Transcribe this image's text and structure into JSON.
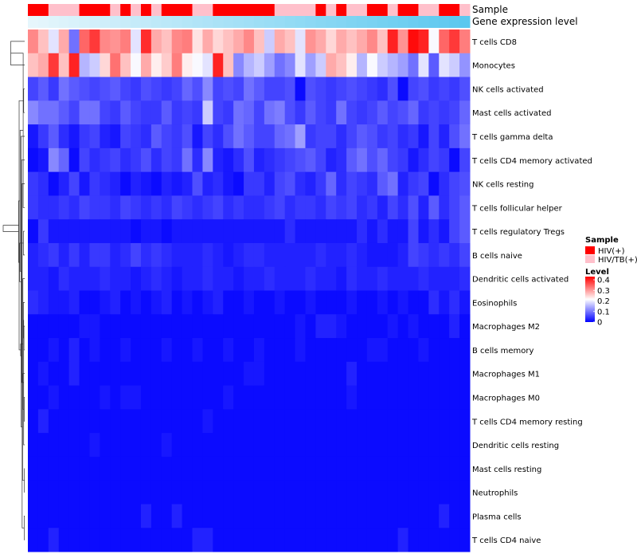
{
  "chart_data": {
    "type": "heatmap",
    "annotation_tracks": [
      "Sample",
      "Gene expression level"
    ],
    "rows": [
      "T cells CD8",
      "Monocytes",
      "NK cells activated",
      "Mast cells activated",
      "T cells gamma delta",
      "T cells CD4 memory activated",
      "NK cells resting",
      "T cells follicular helper",
      "T cells regulatory  Tregs",
      "B cells naive",
      "Dendritic cells activated",
      "Eosinophils",
      "Macrophages M2",
      "B cells memory",
      "Macrophages M1",
      "Macrophages M0",
      "T cells CD4 memory resting",
      "Dendritic cells resting",
      "Mast cells resting",
      "Neutrophils",
      "Plasma cells",
      "T cells CD4 naive"
    ],
    "n_samples": 43,
    "sample_groups": [
      "HIV(+)",
      "HIV(+)",
      "HIV/TB(+)",
      "HIV/TB(+)",
      "HIV/TB(+)",
      "HIV(+)",
      "HIV(+)",
      "HIV(+)",
      "HIV/TB(+)",
      "HIV(+)",
      "HIV/TB(+)",
      "HIV(+)",
      "HIV/TB(+)",
      "HIV(+)",
      "HIV(+)",
      "HIV(+)",
      "HIV/TB(+)",
      "HIV/TB(+)",
      "HIV(+)",
      "HIV(+)",
      "HIV(+)",
      "HIV(+)",
      "HIV(+)",
      "HIV(+)",
      "HIV/TB(+)",
      "HIV/TB(+)",
      "HIV/TB(+)",
      "HIV/TB(+)",
      "HIV(+)",
      "HIV/TB(+)",
      "HIV(+)",
      "HIV/TB(+)",
      "HIV/TB(+)",
      "HIV(+)",
      "HIV(+)",
      "HIV/TB(+)",
      "HIV(+)",
      "HIV(+)",
      "HIV/TB(+)",
      "HIV/TB(+)",
      "HIV(+)",
      "HIV(+)",
      "HIV/TB(+)"
    ],
    "expression_gradient": [
      "#e6f6fc",
      "#5bc8ef"
    ],
    "values": [
      [
        0.33,
        0.28,
        0.2,
        0.3,
        0.1,
        0.36,
        0.4,
        0.33,
        0.32,
        0.34,
        0.2,
        0.41,
        0.3,
        0.28,
        0.33,
        0.34,
        0.25,
        0.3,
        0.26,
        0.28,
        0.3,
        0.33,
        0.28,
        0.18,
        0.3,
        0.28,
        0.2,
        0.32,
        0.3,
        0.26,
        0.3,
        0.28,
        0.3,
        0.33,
        0.28,
        0.42,
        0.32,
        0.44,
        0.42,
        0.22,
        0.36,
        0.4,
        0.34
      ],
      [
        0.28,
        0.3,
        0.4,
        0.28,
        0.42,
        0.16,
        0.18,
        0.26,
        0.35,
        0.28,
        0.22,
        0.3,
        0.24,
        0.27,
        0.34,
        0.24,
        0.22,
        0.2,
        0.42,
        0.28,
        0.12,
        0.16,
        0.18,
        0.14,
        0.1,
        0.12,
        0.2,
        0.14,
        0.18,
        0.3,
        0.28,
        0.24,
        0.16,
        0.22,
        0.18,
        0.16,
        0.14,
        0.1,
        0.2,
        0.08,
        0.2,
        0.18,
        0.13
      ],
      [
        0.06,
        0.08,
        0.05,
        0.1,
        0.08,
        0.07,
        0.06,
        0.07,
        0.08,
        0.06,
        0.05,
        0.07,
        0.06,
        0.05,
        0.06,
        0.09,
        0.07,
        0.12,
        0.06,
        0.07,
        0.06,
        0.1,
        0.08,
        0.06,
        0.06,
        0.07,
        0.01,
        0.07,
        0.06,
        0.05,
        0.06,
        0.07,
        0.06,
        0.05,
        0.04,
        0.07,
        0.01,
        0.06,
        0.07,
        0.05,
        0.06,
        0.05,
        0.07
      ],
      [
        0.12,
        0.1,
        0.1,
        0.08,
        0.06,
        0.1,
        0.1,
        0.06,
        0.05,
        0.08,
        0.06,
        0.05,
        0.05,
        0.08,
        0.05,
        0.06,
        0.05,
        0.18,
        0.06,
        0.05,
        0.1,
        0.09,
        0.06,
        0.1,
        0.11,
        0.07,
        0.05,
        0.08,
        0.06,
        0.05,
        0.1,
        0.06,
        0.05,
        0.06,
        0.08,
        0.06,
        0.07,
        0.09,
        0.05,
        0.06,
        0.05,
        0.06,
        0.09
      ],
      [
        0.02,
        0.05,
        0.08,
        0.04,
        0.02,
        0.05,
        0.06,
        0.03,
        0.02,
        0.06,
        0.05,
        0.04,
        0.08,
        0.06,
        0.05,
        0.07,
        0.02,
        0.06,
        0.04,
        0.07,
        0.1,
        0.08,
        0.06,
        0.06,
        0.09,
        0.1,
        0.14,
        0.05,
        0.06,
        0.06,
        0.04,
        0.06,
        0.08,
        0.07,
        0.05,
        0.06,
        0.04,
        0.05,
        0.02,
        0.06,
        0.03,
        0.07,
        0.1
      ],
      [
        0.01,
        0.02,
        0.12,
        0.09,
        0.01,
        0.06,
        0.04,
        0.05,
        0.06,
        0.04,
        0.05,
        0.07,
        0.04,
        0.06,
        0.05,
        0.1,
        0.04,
        0.12,
        0.03,
        0.02,
        0.04,
        0.07,
        0.03,
        0.04,
        0.05,
        0.06,
        0.07,
        0.08,
        0.06,
        0.03,
        0.04,
        0.08,
        0.1,
        0.07,
        0.09,
        0.06,
        0.05,
        0.02,
        0.04,
        0.06,
        0.05,
        0.01,
        0.06
      ],
      [
        0.05,
        0.04,
        0.01,
        0.03,
        0.06,
        0.02,
        0.05,
        0.04,
        0.03,
        0.01,
        0.03,
        0.02,
        0.01,
        0.03,
        0.02,
        0.03,
        0.07,
        0.03,
        0.04,
        0.02,
        0.01,
        0.05,
        0.05,
        0.03,
        0.06,
        0.07,
        0.04,
        0.03,
        0.05,
        0.09,
        0.04,
        0.06,
        0.05,
        0.04,
        0.08,
        0.1,
        0.03,
        0.05,
        0.06,
        0.01,
        0.04,
        0.06,
        0.07
      ],
      [
        0.05,
        0.04,
        0.04,
        0.05,
        0.04,
        0.06,
        0.05,
        0.05,
        0.04,
        0.06,
        0.05,
        0.04,
        0.05,
        0.04,
        0.06,
        0.05,
        0.04,
        0.05,
        0.06,
        0.04,
        0.05,
        0.04,
        0.04,
        0.05,
        0.06,
        0.04,
        0.05,
        0.05,
        0.04,
        0.06,
        0.05,
        0.06,
        0.04,
        0.05,
        0.03,
        0.06,
        0.04,
        0.07,
        0.03,
        0.08,
        0.04,
        0.06,
        0.08
      ],
      [
        0.01,
        0.05,
        0.02,
        0.02,
        0.02,
        0.02,
        0.02,
        0.02,
        0.02,
        0.02,
        0.01,
        0.02,
        0.02,
        0.01,
        0.02,
        0.02,
        0.02,
        0.02,
        0.02,
        0.02,
        0.02,
        0.02,
        0.02,
        0.02,
        0.02,
        0.04,
        0.02,
        0.02,
        0.02,
        0.02,
        0.02,
        0.02,
        0.04,
        0.02,
        0.04,
        0.02,
        0.02,
        0.06,
        0.02,
        0.04,
        0.02,
        0.06,
        0.08
      ],
      [
        0.03,
        0.04,
        0.05,
        0.03,
        0.05,
        0.03,
        0.05,
        0.05,
        0.03,
        0.04,
        0.06,
        0.04,
        0.05,
        0.04,
        0.03,
        0.03,
        0.03,
        0.04,
        0.03,
        0.02,
        0.03,
        0.04,
        0.04,
        0.03,
        0.03,
        0.03,
        0.03,
        0.03,
        0.04,
        0.03,
        0.03,
        0.04,
        0.03,
        0.02,
        0.02,
        0.02,
        0.03,
        0.06,
        0.05,
        0.04,
        0.05,
        0.04,
        0.06
      ],
      [
        0.03,
        0.03,
        0.02,
        0.04,
        0.03,
        0.03,
        0.03,
        0.04,
        0.03,
        0.03,
        0.02,
        0.03,
        0.04,
        0.03,
        0.02,
        0.03,
        0.03,
        0.04,
        0.03,
        0.03,
        0.02,
        0.03,
        0.03,
        0.04,
        0.03,
        0.03,
        0.03,
        0.04,
        0.03,
        0.03,
        0.02,
        0.04,
        0.03,
        0.03,
        0.04,
        0.03,
        0.03,
        0.03,
        0.04,
        0.03,
        0.03,
        0.03,
        0.04
      ],
      [
        0.04,
        0.03,
        0.02,
        0.02,
        0.03,
        0.01,
        0.01,
        0.02,
        0.03,
        0.01,
        0.02,
        0.01,
        0.02,
        0.03,
        0.01,
        0.02,
        0.01,
        0.02,
        0.03,
        0.01,
        0.01,
        0.02,
        0.01,
        0.01,
        0.02,
        0.01,
        0.01,
        0.02,
        0.01,
        0.01,
        0.01,
        0.02,
        0.01,
        0.01,
        0.02,
        0.01,
        0.02,
        0.01,
        0.01,
        0.04,
        0.02,
        0.04,
        0.02
      ],
      [
        0.01,
        0.01,
        0.01,
        0.01,
        0.01,
        0.02,
        0.02,
        0.01,
        0.01,
        0.01,
        0.01,
        0.01,
        0.01,
        0.01,
        0.01,
        0.01,
        0.01,
        0.01,
        0.01,
        0.01,
        0.01,
        0.01,
        0.01,
        0.01,
        0.01,
        0.01,
        0.02,
        0.01,
        0.03,
        0.03,
        0.02,
        0.01,
        0.01,
        0.01,
        0.01,
        0.02,
        0.01,
        0.02,
        0.01,
        0.01,
        0.01,
        0.03,
        0.01
      ],
      [
        0.01,
        0.01,
        0.02,
        0.01,
        0.03,
        0.01,
        0.02,
        0.01,
        0.01,
        0.02,
        0.01,
        0.01,
        0.01,
        0.02,
        0.01,
        0.01,
        0.02,
        0.01,
        0.01,
        0.02,
        0.01,
        0.01,
        0.02,
        0.01,
        0.01,
        0.01,
        0.02,
        0.01,
        0.01,
        0.01,
        0.01,
        0.01,
        0.01,
        0.02,
        0.02,
        0.01,
        0.01,
        0.01,
        0.02,
        0.01,
        0.01,
        0.01,
        0.01
      ],
      [
        0.01,
        0.02,
        0.01,
        0.01,
        0.03,
        0.01,
        0.01,
        0.01,
        0.01,
        0.01,
        0.01,
        0.01,
        0.01,
        0.01,
        0.01,
        0.01,
        0.01,
        0.01,
        0.01,
        0.01,
        0.01,
        0.02,
        0.02,
        0.01,
        0.01,
        0.01,
        0.01,
        0.01,
        0.01,
        0.01,
        0.01,
        0.03,
        0.01,
        0.01,
        0.01,
        0.01,
        0.01,
        0.01,
        0.01,
        0.01,
        0.01,
        0.01,
        0.01
      ],
      [
        0.01,
        0.01,
        0.02,
        0.01,
        0.01,
        0.01,
        0.01,
        0.02,
        0.01,
        0.02,
        0.02,
        0.01,
        0.01,
        0.01,
        0.01,
        0.01,
        0.01,
        0.01,
        0.01,
        0.02,
        0.01,
        0.01,
        0.01,
        0.01,
        0.01,
        0.01,
        0.01,
        0.01,
        0.01,
        0.01,
        0.01,
        0.02,
        0.01,
        0.01,
        0.01,
        0.01,
        0.01,
        0.01,
        0.01,
        0.01,
        0.01,
        0.01,
        0.01
      ],
      [
        0.01,
        0.03,
        0.01,
        0.01,
        0.01,
        0.01,
        0.01,
        0.01,
        0.01,
        0.01,
        0.01,
        0.01,
        0.01,
        0.01,
        0.01,
        0.01,
        0.01,
        0.02,
        0.01,
        0.01,
        0.01,
        0.01,
        0.01,
        0.01,
        0.01,
        0.01,
        0.01,
        0.01,
        0.01,
        0.01,
        0.01,
        0.01,
        0.01,
        0.01,
        0.01,
        0.01,
        0.01,
        0.01,
        0.01,
        0.01,
        0.01,
        0.01,
        0.01
      ],
      [
        0.01,
        0.01,
        0.01,
        0.01,
        0.01,
        0.01,
        0.02,
        0.01,
        0.01,
        0.01,
        0.01,
        0.01,
        0.01,
        0.02,
        0.01,
        0.01,
        0.01,
        0.01,
        0.01,
        0.01,
        0.01,
        0.01,
        0.01,
        0.01,
        0.01,
        0.01,
        0.01,
        0.01,
        0.01,
        0.01,
        0.01,
        0.01,
        0.01,
        0.01,
        0.01,
        0.01,
        0.01,
        0.01,
        0.01,
        0.01,
        0.01,
        0.01,
        0.01
      ],
      [
        0.01,
        0.01,
        0.01,
        0.01,
        0.01,
        0.01,
        0.01,
        0.01,
        0.01,
        0.01,
        0.01,
        0.01,
        0.01,
        0.01,
        0.01,
        0.01,
        0.01,
        0.01,
        0.01,
        0.01,
        0.01,
        0.01,
        0.01,
        0.01,
        0.01,
        0.01,
        0.01,
        0.01,
        0.01,
        0.01,
        0.01,
        0.01,
        0.01,
        0.01,
        0.01,
        0.01,
        0.01,
        0.01,
        0.01,
        0.01,
        0.01,
        0.01,
        0.01
      ],
      [
        0.01,
        0.01,
        0.01,
        0.01,
        0.01,
        0.01,
        0.01,
        0.01,
        0.01,
        0.01,
        0.01,
        0.01,
        0.01,
        0.01,
        0.01,
        0.01,
        0.01,
        0.01,
        0.01,
        0.01,
        0.01,
        0.01,
        0.01,
        0.01,
        0.01,
        0.01,
        0.01,
        0.01,
        0.01,
        0.01,
        0.01,
        0.01,
        0.01,
        0.01,
        0.01,
        0.01,
        0.01,
        0.01,
        0.01,
        0.01,
        0.01,
        0.01,
        0.01
      ],
      [
        0.01,
        0.01,
        0.01,
        0.01,
        0.01,
        0.01,
        0.01,
        0.01,
        0.01,
        0.01,
        0.01,
        0.03,
        0.01,
        0.01,
        0.03,
        0.01,
        0.01,
        0.01,
        0.01,
        0.01,
        0.01,
        0.01,
        0.01,
        0.01,
        0.01,
        0.01,
        0.01,
        0.01,
        0.01,
        0.01,
        0.01,
        0.01,
        0.01,
        0.01,
        0.01,
        0.01,
        0.01,
        0.01,
        0.01,
        0.01,
        0.03,
        0.01,
        0.01
      ],
      [
        0.01,
        0.01,
        0.03,
        0.01,
        0.01,
        0.01,
        0.01,
        0.01,
        0.01,
        0.01,
        0.01,
        0.01,
        0.01,
        0.01,
        0.01,
        0.01,
        0.03,
        0.03,
        0.01,
        0.01,
        0.01,
        0.01,
        0.01,
        0.01,
        0.01,
        0.01,
        0.01,
        0.01,
        0.01,
        0.01,
        0.01,
        0.01,
        0.01,
        0.01,
        0.01,
        0.01,
        0.03,
        0.01,
        0.01,
        0.01,
        0.01,
        0.01,
        0.01
      ]
    ],
    "color_scale": {
      "min": 0,
      "max": 0.45,
      "stops": [
        "#0000ff",
        "#ffffff",
        "#ff0000"
      ]
    },
    "dendrogram": {
      "merges": [
        [
          0,
          1
        ],
        [
          2,
          3
        ],
        [
          8,
          9
        ],
        [
          7,
          22
        ],
        [
          12,
          13
        ],
        [
          15,
          16
        ],
        [
          18,
          19
        ],
        [
          11,
          26
        ],
        [
          10,
          27
        ],
        [
          20,
          21
        ],
        [
          17,
          29
        ],
        [
          14,
          28
        ],
        [
          6,
          31
        ],
        [
          5,
          32
        ],
        [
          4,
          33
        ],
        [
          30,
          34
        ],
        [
          25,
          35
        ],
        [
          24,
          36
        ],
        [
          23,
          37
        ],
        [
          38,
          39
        ],
        [
          40,
          41
        ]
      ],
      "heights": [
        0.55,
        0.04,
        0.05,
        0.06,
        0.03,
        0.02,
        0.01,
        0.05,
        0.07,
        0.02,
        0.04,
        0.08,
        0.1,
        0.12,
        0.14,
        0.16,
        0.18,
        0.2,
        0.22,
        0.24,
        0.85
      ]
    },
    "legend": {
      "sample": {
        "title": "Sample",
        "items": [
          {
            "label": "HIV(+)",
            "color": "#ff0000"
          },
          {
            "label": "HIV/TB(+)",
            "color": "#ffc0cb"
          }
        ]
      },
      "level": {
        "title": "Level",
        "ticks": [
          0.4,
          0.3,
          0.2,
          0.1,
          0
        ]
      }
    }
  }
}
